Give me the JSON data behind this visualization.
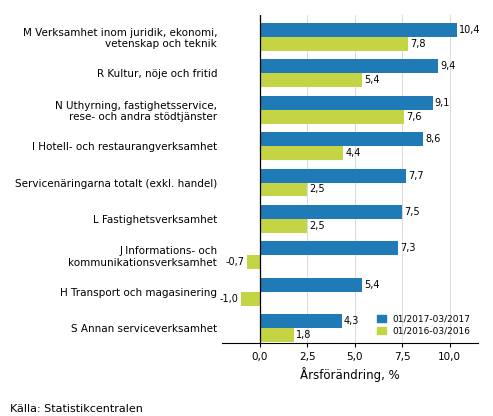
{
  "categories": [
    "M Verksamhet inom juridik, ekonomi,\nvetenskap och teknik",
    "R Kultur, nöje och fritid",
    "N Uthyrning, fastighetsservice,\nrese- och andra stödtjänster",
    "I Hotell- och restaurangverksamhet",
    "Servicenäringarna totalt (exkl. handel)",
    "L Fastighetsverksamhet",
    "J Informations- och\nkommunikationsverksamhet",
    "H Transport och magasinering",
    "S Annan serviceverksamhet"
  ],
  "values_2017": [
    10.4,
    9.4,
    9.1,
    8.6,
    7.7,
    7.5,
    7.3,
    5.4,
    4.3
  ],
  "values_2016": [
    7.8,
    5.4,
    7.6,
    4.4,
    2.5,
    2.5,
    -0.7,
    -1.0,
    1.8
  ],
  "color_2017": "#1f7ab5",
  "color_2016": "#c5d444",
  "legend_2017": "01/2017-03/2017",
  "legend_2016": "01/2016-03/2016",
  "xlabel": "Årsförändring, %",
  "xlim": [
    -2.0,
    11.5
  ],
  "xticks": [
    0.0,
    2.5,
    5.0,
    7.5,
    10.0
  ],
  "xtick_labels": [
    "0,0",
    "2,5",
    "5,0",
    "7,5",
    "10,0"
  ],
  "source": "Källa: Statistikcentralen",
  "bar_height": 0.38,
  "fontsize_labels": 7.5,
  "fontsize_values": 7.0,
  "fontsize_xlabel": 8.5,
  "fontsize_source": 8,
  "background_color": "#ffffff"
}
